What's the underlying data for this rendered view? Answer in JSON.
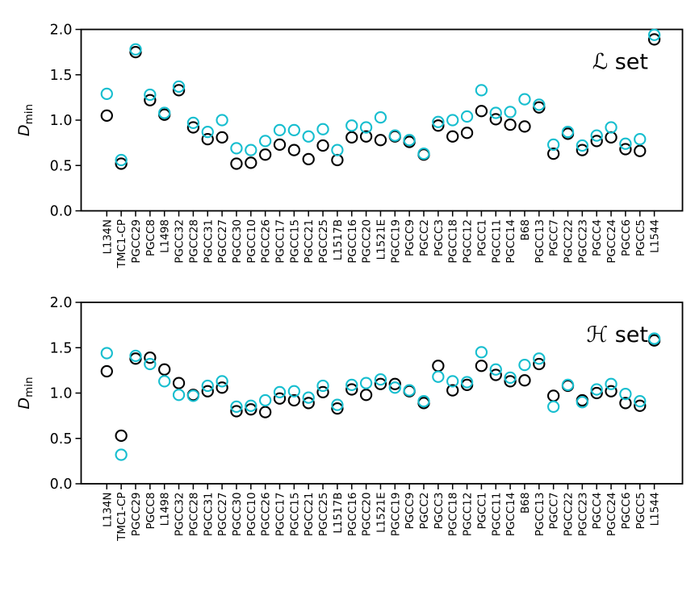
{
  "figure": {
    "background": "#ffffff",
    "axes_color": "#000000",
    "ylabel": {
      "symbol": "D",
      "subscript": "min"
    },
    "ytick_labels": [
      "0.0",
      "0.5",
      "1.0",
      "1.5",
      "2.0"
    ],
    "marker_colors": {
      "black": "#000000",
      "cyan": "#17becf"
    }
  },
  "chart_data": [
    {
      "type": "scatter",
      "panel_label": "ℒ set",
      "ylabel": "D_min",
      "ylim": [
        0.0,
        2.0
      ],
      "yticks": [
        0.0,
        0.5,
        1.0,
        1.5,
        2.0
      ],
      "grid": false,
      "legend": "none",
      "marker": "open-circle",
      "categories": [
        "L134N",
        "TMC1-CP",
        "PGCC29",
        "PGCC8",
        "L1498",
        "PGCC32",
        "PGCC28",
        "PGCC31",
        "PGCC27",
        "PGCC30",
        "PGCC10",
        "PGCC26",
        "PGCC17",
        "PGCC15",
        "PGCC21",
        "PGCC25",
        "L1517B",
        "PGCC16",
        "PGCC20",
        "L1521E",
        "PGCC19",
        "PGCC9",
        "PGCC2",
        "PGCC3",
        "PGCC18",
        "PGCC12",
        "PGCC1",
        "PGCC11",
        "PGCC14",
        "B68",
        "PGCC13",
        "PGCC7",
        "PGCC22",
        "PGCC23",
        "PGCC4",
        "PGCC24",
        "PGCC6",
        "PGCC5",
        "L1544"
      ],
      "series": [
        {
          "name": "black",
          "color": "#000000",
          "values": [
            1.05,
            0.52,
            1.75,
            1.22,
            1.06,
            1.33,
            0.92,
            0.79,
            0.81,
            0.52,
            0.53,
            0.62,
            0.73,
            0.67,
            0.57,
            0.72,
            0.56,
            0.81,
            0.82,
            0.78,
            0.82,
            0.76,
            0.62,
            0.94,
            0.82,
            0.86,
            1.1,
            1.01,
            0.95,
            0.93,
            1.14,
            0.63,
            0.85,
            0.67,
            0.77,
            0.81,
            0.68,
            0.66,
            1.89
          ]
        },
        {
          "name": "cyan",
          "color": "#17becf",
          "values": [
            1.29,
            0.56,
            1.78,
            1.28,
            1.08,
            1.37,
            0.97,
            0.87,
            1.0,
            0.69,
            0.67,
            0.77,
            0.89,
            0.89,
            0.82,
            0.9,
            0.67,
            0.94,
            0.92,
            1.03,
            0.83,
            0.78,
            0.63,
            0.98,
            1.0,
            1.04,
            1.33,
            1.08,
            1.09,
            1.23,
            1.17,
            0.73,
            0.87,
            0.72,
            0.83,
            0.92,
            0.74,
            0.79,
            1.94
          ]
        }
      ]
    },
    {
      "type": "scatter",
      "panel_label": "ℋ set",
      "ylabel": "D_min",
      "ylim": [
        0.0,
        2.0
      ],
      "yticks": [
        0.0,
        0.5,
        1.0,
        1.5,
        2.0
      ],
      "grid": false,
      "legend": "none",
      "marker": "open-circle",
      "categories": [
        "L134N",
        "TMC1-CP",
        "PGCC29",
        "PGCC8",
        "L1498",
        "PGCC32",
        "PGCC28",
        "PGCC31",
        "PGCC27",
        "PGCC30",
        "PGCC10",
        "PGCC26",
        "PGCC17",
        "PGCC15",
        "PGCC21",
        "PGCC25",
        "L1517B",
        "PGCC16",
        "PGCC20",
        "L1521E",
        "PGCC19",
        "PGCC9",
        "PGCC2",
        "PGCC3",
        "PGCC18",
        "PGCC12",
        "PGCC1",
        "PGCC11",
        "PGCC14",
        "B68",
        "PGCC13",
        "PGCC7",
        "PGCC22",
        "PGCC23",
        "PGCC4",
        "PGCC24",
        "PGCC6",
        "PGCC5",
        "L1544"
      ],
      "series": [
        {
          "name": "black",
          "color": "#000000",
          "values": [
            1.24,
            0.53,
            1.38,
            1.39,
            1.26,
            1.11,
            0.98,
            1.02,
            1.06,
            0.8,
            0.82,
            0.79,
            0.94,
            0.92,
            0.89,
            1.01,
            0.83,
            1.04,
            0.98,
            1.1,
            1.1,
            1.02,
            0.89,
            1.3,
            1.03,
            1.09,
            1.3,
            1.2,
            1.13,
            1.14,
            1.32,
            0.97,
            1.08,
            0.92,
            1.0,
            1.02,
            0.89,
            0.86,
            1.58
          ]
        },
        {
          "name": "cyan",
          "color": "#17becf",
          "values": [
            1.44,
            0.32,
            1.41,
            1.32,
            1.13,
            0.98,
            0.97,
            1.08,
            1.13,
            0.85,
            0.86,
            0.92,
            1.01,
            1.02,
            0.95,
            1.08,
            0.87,
            1.09,
            1.11,
            1.15,
            1.06,
            1.03,
            0.91,
            1.18,
            1.13,
            1.12,
            1.45,
            1.26,
            1.17,
            1.31,
            1.38,
            0.85,
            1.09,
            0.9,
            1.04,
            1.1,
            0.99,
            0.91,
            1.6
          ]
        }
      ]
    }
  ]
}
